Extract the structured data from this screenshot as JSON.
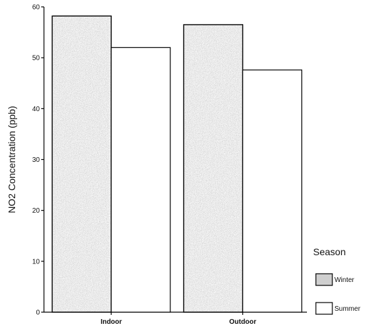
{
  "chart_data": {
    "type": "bar",
    "categories": [
      "Indoor",
      "Outdoor"
    ],
    "series": [
      {
        "name": "Winter",
        "values": [
          58.2,
          56.5
        ],
        "color": "#cfcfcf",
        "pattern": "stipple"
      },
      {
        "name": "Summer",
        "values": [
          52.0,
          47.6
        ],
        "color": "#ffffff",
        "pattern": "none"
      }
    ],
    "title": "",
    "xlabel": "",
    "ylabel": "NO2 Concentration (ppb)",
    "ylim": [
      0,
      60
    ],
    "yticks": [
      "0",
      "10",
      "20",
      "30",
      "40",
      "50",
      "60"
    ],
    "legend": {
      "title": "Season",
      "position": "right"
    },
    "grid": false
  }
}
